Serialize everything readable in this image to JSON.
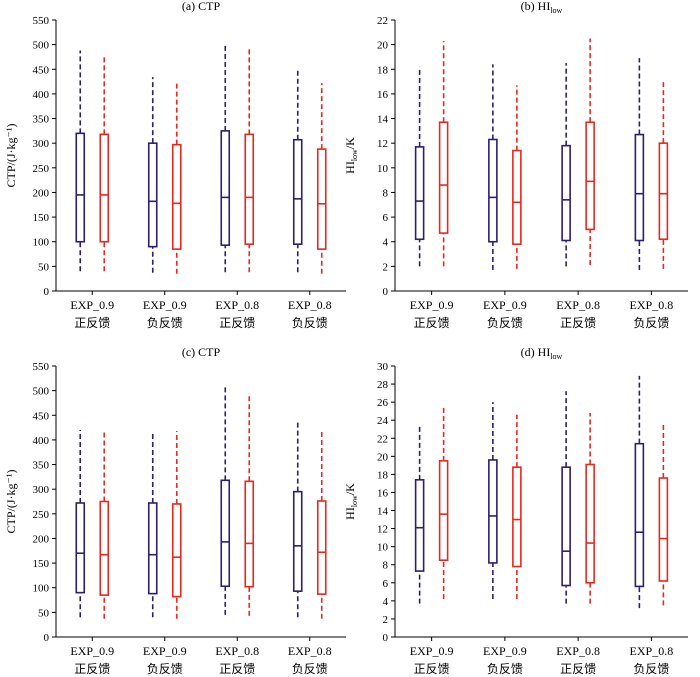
{
  "chart_data": [
    {
      "type": "box",
      "title": "(a) CTP",
      "ylabel": "CTP/(J·kg⁻¹)",
      "ylim": [
        0,
        550
      ],
      "yticks": [
        0,
        50,
        100,
        150,
        200,
        250,
        300,
        350,
        400,
        450,
        500,
        550
      ],
      "categories": [
        {
          "line1": "EXP_0.9",
          "line2": "正反馈"
        },
        {
          "line1": "EXP_0.9",
          "line2": "负反馈"
        },
        {
          "line1": "EXP_0.8",
          "line2": "正反馈"
        },
        {
          "line1": "EXP_0.8",
          "line2": "负反馈"
        }
      ],
      "series": [
        {
          "color": "#2f1e6e",
          "boxes": [
            {
              "min": 40,
              "q1": 100,
              "median": 195,
              "q3": 320,
              "max": 488
            },
            {
              "min": 37,
              "q1": 90,
              "median": 182,
              "q3": 300,
              "max": 434
            },
            {
              "min": 38,
              "q1": 93,
              "median": 190,
              "q3": 325,
              "max": 502
            },
            {
              "min": 38,
              "q1": 95,
              "median": 187,
              "q3": 307,
              "max": 453
            }
          ]
        },
        {
          "color": "#e8281e",
          "boxes": [
            {
              "min": 40,
              "q1": 100,
              "median": 195,
              "q3": 318,
              "max": 476
            },
            {
              "min": 35,
              "q1": 85,
              "median": 178,
              "q3": 297,
              "max": 422
            },
            {
              "min": 38,
              "q1": 95,
              "median": 190,
              "q3": 318,
              "max": 495
            },
            {
              "min": 35,
              "q1": 85,
              "median": 177,
              "q3": 288,
              "max": 422
            }
          ]
        }
      ]
    },
    {
      "type": "box",
      "title": "(b) HI",
      "title_sub": "low",
      "ylabel": "HI",
      "ylabel_sub": "low",
      "ylabel_suffix": "/K",
      "ylim": [
        0,
        22
      ],
      "yticks": [
        0,
        2,
        4,
        6,
        8,
        10,
        12,
        14,
        16,
        18,
        20,
        22
      ],
      "categories": [
        {
          "line1": "EXP_0.9",
          "line2": "正反馈"
        },
        {
          "line1": "EXP_0.9",
          "line2": "负反馈"
        },
        {
          "line1": "EXP_0.8",
          "line2": "正反馈"
        },
        {
          "line1": "EXP_0.8",
          "line2": "负反馈"
        }
      ],
      "series": [
        {
          "color": "#2f1e6e",
          "boxes": [
            {
              "min": 2.0,
              "q1": 4.2,
              "median": 7.3,
              "q3": 11.7,
              "max": 18.2
            },
            {
              "min": 1.7,
              "q1": 4.0,
              "median": 7.6,
              "q3": 12.3,
              "max": 18.4
            },
            {
              "min": 2.0,
              "q1": 4.1,
              "median": 7.4,
              "q3": 11.8,
              "max": 18.5
            },
            {
              "min": 1.7,
              "q1": 4.1,
              "median": 7.9,
              "q3": 12.7,
              "max": 18.9
            }
          ]
        },
        {
          "color": "#e8281e",
          "boxes": [
            {
              "min": 2.0,
              "q1": 4.7,
              "median": 8.6,
              "q3": 13.7,
              "max": 20.3
            },
            {
              "min": 1.8,
              "q1": 3.8,
              "median": 7.2,
              "q3": 11.4,
              "max": 16.7
            },
            {
              "min": 2.1,
              "q1": 5.0,
              "median": 8.9,
              "q3": 13.7,
              "max": 20.5
            },
            {
              "min": 1.8,
              "q1": 4.2,
              "median": 7.9,
              "q3": 12.0,
              "max": 17.2
            }
          ]
        }
      ]
    },
    {
      "type": "box",
      "title": "(c) CTP",
      "ylabel": "CTP/(J·kg⁻¹)",
      "ylim": [
        0,
        550
      ],
      "yticks": [
        0,
        50,
        100,
        150,
        200,
        250,
        300,
        350,
        400,
        450,
        500,
        550
      ],
      "categories": [
        {
          "line1": "EXP_0.9",
          "line2": "正反馈"
        },
        {
          "line1": "EXP_0.9",
          "line2": "负反馈"
        },
        {
          "line1": "EXP_0.8",
          "line2": "正反馈"
        },
        {
          "line1": "EXP_0.8",
          "line2": "负反馈"
        }
      ],
      "series": [
        {
          "color": "#2f1e6e",
          "boxes": [
            {
              "min": 40,
              "q1": 90,
              "median": 170,
              "q3": 272,
              "max": 420
            },
            {
              "min": 40,
              "q1": 88,
              "median": 167,
              "q3": 272,
              "max": 415
            },
            {
              "min": 45,
              "q1": 103,
              "median": 193,
              "q3": 318,
              "max": 507
            },
            {
              "min": 40,
              "q1": 93,
              "median": 185,
              "q3": 295,
              "max": 437
            }
          ]
        },
        {
          "color": "#e8281e",
          "boxes": [
            {
              "min": 37,
              "q1": 85,
              "median": 167,
              "q3": 275,
              "max": 417
            },
            {
              "min": 37,
              "q1": 82,
              "median": 162,
              "q3": 270,
              "max": 418
            },
            {
              "min": 43,
              "q1": 102,
              "median": 190,
              "q3": 316,
              "max": 495
            },
            {
              "min": 37,
              "q1": 87,
              "median": 172,
              "q3": 276,
              "max": 417
            }
          ]
        }
      ]
    },
    {
      "type": "box",
      "title": "(d) HI",
      "title_sub": "low",
      "ylabel": "HI",
      "ylabel_sub": "low",
      "ylabel_suffix": "/K",
      "ylim": [
        0,
        30
      ],
      "yticks": [
        0,
        2,
        4,
        6,
        8,
        10,
        12,
        14,
        16,
        18,
        20,
        22,
        24,
        26,
        28,
        30
      ],
      "categories": [
        {
          "line1": "EXP_0.9",
          "line2": "正反馈"
        },
        {
          "line1": "EXP_0.9",
          "line2": "负反馈"
        },
        {
          "line1": "EXP_0.8",
          "line2": "正反馈"
        },
        {
          "line1": "EXP_0.8",
          "line2": "负反馈"
        }
      ],
      "series": [
        {
          "color": "#2f1e6e",
          "boxes": [
            {
              "min": 3.7,
              "q1": 7.3,
              "median": 12.1,
              "q3": 17.4,
              "max": 23.5
            },
            {
              "min": 4.2,
              "q1": 8.2,
              "median": 13.4,
              "q3": 19.6,
              "max": 26.0
            },
            {
              "min": 3.7,
              "q1": 5.7,
              "median": 9.5,
              "q3": 18.8,
              "max": 27.2
            },
            {
              "min": 3.2,
              "q1": 5.6,
              "median": 11.6,
              "q3": 21.4,
              "max": 28.9
            }
          ]
        },
        {
          "color": "#e8281e",
          "boxes": [
            {
              "min": 4.2,
              "q1": 8.5,
              "median": 13.6,
              "q3": 19.5,
              "max": 25.6
            },
            {
              "min": 4.2,
              "q1": 7.8,
              "median": 13.0,
              "q3": 18.8,
              "max": 24.6
            },
            {
              "min": 3.7,
              "q1": 6.0,
              "median": 10.4,
              "q3": 19.1,
              "max": 24.8
            },
            {
              "min": 3.5,
              "q1": 6.2,
              "median": 10.9,
              "q3": 17.6,
              "max": 23.6
            }
          ]
        }
      ]
    }
  ]
}
